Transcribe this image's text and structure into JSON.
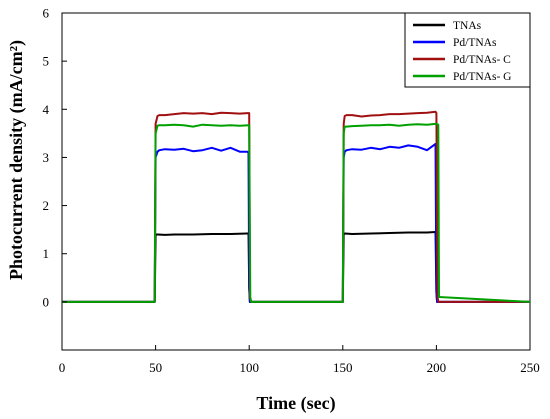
{
  "chart_data": {
    "type": "line",
    "title": "",
    "xlabel": "Time (sec)",
    "ylabel": "Photocurrent density (mA/cm²)",
    "xlim": [
      0,
      250
    ],
    "ylim": [
      -1,
      6
    ],
    "xticks": [
      0,
      50,
      100,
      150,
      200,
      250
    ],
    "yticks": [
      0,
      1,
      2,
      3,
      4,
      5,
      6
    ],
    "grid": false,
    "legend_position": "top-right",
    "series": [
      {
        "name": "TNAs",
        "color": "#000000",
        "x": [
          0,
          49.5,
          50,
          51,
          55,
          60,
          70,
          80,
          90,
          99,
          99.6,
          100,
          100.4,
          101,
          150,
          150.5,
          151,
          155,
          165,
          175,
          185,
          195,
          199.5,
          200,
          200.4,
          201,
          250
        ],
        "y": [
          0,
          0,
          1.4,
          1.4,
          1.39,
          1.4,
          1.4,
          1.41,
          1.41,
          1.42,
          1.42,
          0.3,
          0,
          0,
          0,
          1.4,
          1.42,
          1.41,
          1.42,
          1.43,
          1.44,
          1.44,
          1.45,
          0.2,
          0,
          0,
          0
        ]
      },
      {
        "name": "Pd/TNAs",
        "color": "#0000ff",
        "x": [
          0,
          49.5,
          50,
          51,
          52,
          55,
          60,
          65,
          70,
          75,
          80,
          85,
          90,
          95,
          99,
          99.6,
          100,
          100.4,
          101,
          150,
          150.5,
          151,
          152,
          155,
          160,
          165,
          170,
          175,
          180,
          185,
          190,
          195,
          199.5,
          200,
          200.4,
          201,
          250
        ],
        "y": [
          0,
          0,
          3.0,
          3.12,
          3.15,
          3.17,
          3.16,
          3.18,
          3.13,
          3.15,
          3.2,
          3.14,
          3.2,
          3.12,
          3.12,
          3.1,
          0.3,
          0,
          0,
          0,
          3.0,
          3.12,
          3.15,
          3.17,
          3.16,
          3.2,
          3.17,
          3.22,
          3.2,
          3.25,
          3.22,
          3.15,
          3.28,
          0.2,
          0,
          0,
          0
        ]
      },
      {
        "name": "Pd/TNAs- C",
        "color": "#a01010",
        "x": [
          0,
          49.5,
          50,
          51,
          52,
          55,
          60,
          65,
          70,
          75,
          80,
          85,
          90,
          95,
          99,
          100,
          100.4,
          101,
          150,
          150.5,
          151,
          152,
          155,
          160,
          165,
          170,
          175,
          180,
          185,
          190,
          195,
          199.5,
          200,
          200.6,
          201,
          250
        ],
        "y": [
          0,
          0,
          3.7,
          3.86,
          3.88,
          3.88,
          3.9,
          3.92,
          3.91,
          3.92,
          3.9,
          3.93,
          3.92,
          3.91,
          3.92,
          3.92,
          0.1,
          0,
          0,
          3.7,
          3.86,
          3.88,
          3.88,
          3.85,
          3.87,
          3.88,
          3.9,
          3.9,
          3.91,
          3.92,
          3.93,
          3.95,
          3.92,
          0.1,
          0,
          0
        ]
      },
      {
        "name": "Pd/TNAs- G",
        "color": "#00a000",
        "x": [
          0,
          49.5,
          50,
          51,
          52,
          55,
          60,
          65,
          70,
          75,
          80,
          85,
          90,
          95,
          99.5,
          100,
          100.6,
          101,
          150,
          150.5,
          151,
          152,
          155,
          160,
          165,
          170,
          175,
          180,
          185,
          190,
          195,
          200,
          201,
          201.4,
          250
        ],
        "y": [
          0,
          0,
          3.5,
          3.66,
          3.67,
          3.67,
          3.68,
          3.67,
          3.64,
          3.68,
          3.67,
          3.66,
          3.67,
          3.66,
          3.67,
          3.67,
          0.1,
          0,
          0,
          3.5,
          3.64,
          3.64,
          3.65,
          3.66,
          3.67,
          3.67,
          3.68,
          3.66,
          3.68,
          3.69,
          3.68,
          3.7,
          3.68,
          0.1,
          0
        ]
      }
    ]
  }
}
